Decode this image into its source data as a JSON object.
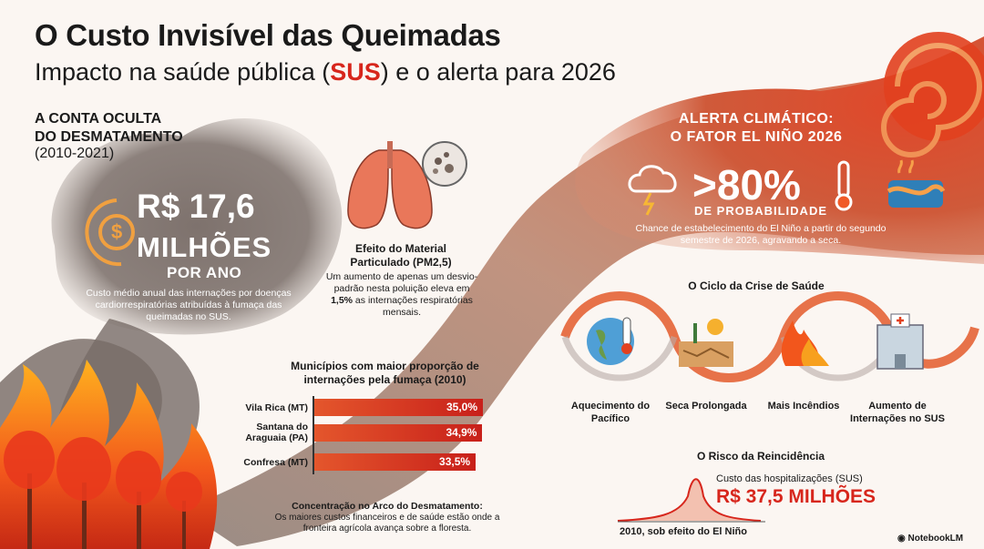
{
  "header": {
    "title": "O Custo Invisível das Queimadas",
    "subtitle_pre": "Impacto na saúde pública (",
    "subtitle_hl": "SUS",
    "subtitle_post": ") e o alerta para 2026"
  },
  "hidden_cost": {
    "heading_line1": "A CONTA OCULTA",
    "heading_line2": "DO DESMATAMENTO",
    "period": "(2010-2021)",
    "value": "R$ 17,6",
    "unit": "MILHÕES",
    "per": "POR ANO",
    "description": "Custo médio anual das internações por doenças cardiorrespiratórias atribuídas à fumaça das queimadas no SUS."
  },
  "pm": {
    "title": "Efeito do Material Particulado (PM2,5)",
    "desc_pre": "Um aumento de apenas um desvio-padrão nesta poluição eleva em ",
    "desc_hl": "1,5%",
    "desc_post": " as internações respiratórias mensais."
  },
  "municipalities": {
    "title": "Municípios com maior proporção de internações pela fumaça (2010)",
    "rows": [
      {
        "name": "Vila Rica (MT)",
        "label": "35,0%",
        "value": 35.0
      },
      {
        "name": "Santana do Araguaia (PA)",
        "label": "34,9%",
        "value": 34.9
      },
      {
        "name": "Confresa (MT)",
        "label": "33,5%",
        "value": 33.5
      }
    ],
    "concentration_title": "Concentração no Arco do Desmatamento:",
    "concentration_desc": "Os maiores custos financeiros e de saúde estão onde a fronteira agrícola avança sobre a floresta."
  },
  "alert": {
    "heading_line1": "ALERTA CLIMÁTICO:",
    "heading_line2": "O FATOR EL NIÑO 2026",
    "pct": ">80%",
    "prob": "DE PROBABILIDADE",
    "description": "Chance de estabelecimento do El Niño a partir do segundo semestre de 2026, agravando a seca."
  },
  "cycle": {
    "title": "O Ciclo da Crise de Saúde",
    "steps": [
      {
        "label": "Aquecimento do Pacífico",
        "icon": "globe-thermometer-icon"
      },
      {
        "label": "Seca Prolongada",
        "icon": "drought-icon"
      },
      {
        "label": "Mais Incêndios",
        "icon": "fire-icon"
      },
      {
        "label": "Aumento de Internações no SUS",
        "icon": "hospital-icon"
      }
    ]
  },
  "risk": {
    "title": "O Risco da Reincidência",
    "subtitle": "Custo das hospitalizações (SUS)",
    "value": "R$ 37,5 MILHÕES",
    "note": "2010, sob efeito do El Niño"
  },
  "brand": "NotebookLM",
  "colors": {
    "accent": "#d7261c",
    "orange": "#e4562c",
    "smoke": "#6b605c"
  }
}
